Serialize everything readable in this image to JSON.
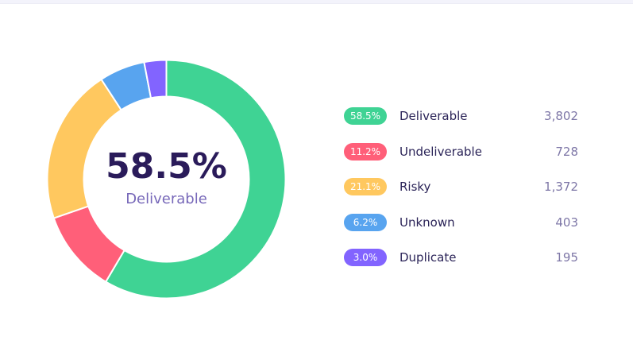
{
  "chart_data": {
    "type": "donut",
    "center_value": "58.5%",
    "center_label": "Deliverable",
    "series": [
      {
        "name": "Deliverable",
        "percent_label": "58.5%",
        "value": 3802,
        "value_label": "3,802",
        "color": "#3fd394"
      },
      {
        "name": "Undeliverable",
        "percent_label": "11.2%",
        "value": 728,
        "value_label": "728",
        "color": "#ff5f79"
      },
      {
        "name": "Risky",
        "percent_label": "21.1%",
        "value": 1372,
        "value_label": "1,372",
        "color": "#ffc85f"
      },
      {
        "name": "Unknown",
        "percent_label": "6.2%",
        "value": 403,
        "value_label": "403",
        "color": "#58a4ef"
      },
      {
        "name": "Duplicate",
        "percent_label": "3.0%",
        "value": 195,
        "value_label": "195",
        "color": "#8264ff"
      }
    ]
  }
}
